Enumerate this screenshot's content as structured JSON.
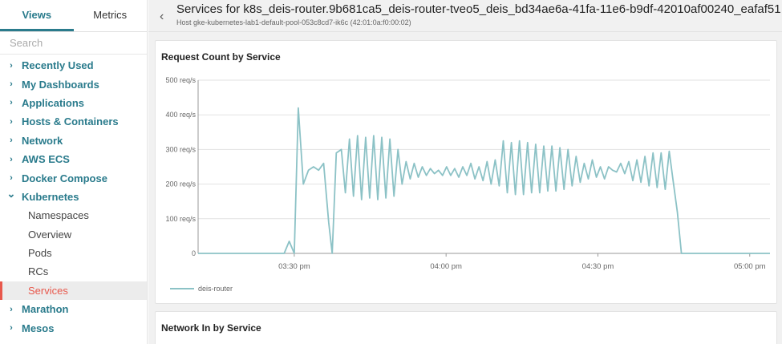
{
  "sidebar": {
    "tabs": [
      {
        "label": "Views",
        "active": true
      },
      {
        "label": "Metrics",
        "active": false
      }
    ],
    "search": {
      "placeholder": "Search",
      "value": ""
    },
    "items": [
      {
        "label": "Recently Used",
        "type": "group"
      },
      {
        "label": "My Dashboards",
        "type": "group"
      },
      {
        "label": "Applications",
        "type": "group"
      },
      {
        "label": "Hosts & Containers",
        "type": "group"
      },
      {
        "label": "Network",
        "type": "group"
      },
      {
        "label": "AWS ECS",
        "type": "group"
      },
      {
        "label": "Docker Compose",
        "type": "group"
      },
      {
        "label": "Kubernetes",
        "type": "group",
        "expanded": true
      },
      {
        "label": "Namespaces",
        "type": "sub"
      },
      {
        "label": "Overview",
        "type": "sub"
      },
      {
        "label": "Pods",
        "type": "sub"
      },
      {
        "label": "RCs",
        "type": "sub"
      },
      {
        "label": "Services",
        "type": "sub",
        "active": true
      },
      {
        "label": "Marathon",
        "type": "group"
      },
      {
        "label": "Mesos",
        "type": "group"
      }
    ]
  },
  "header": {
    "title": "Services for k8s_deis-router.9b681ca5_deis-router-tveo5_deis_bd34ae6a-41fa-11e6-b9df-42010af00240_eafaf51",
    "subtitle": "Host gke-kubernetes-lab1-default-pool-053c8cd7-ik6c (42:01:0a:f0:00:02)"
  },
  "panels": [
    {
      "title": "Request Count by Service"
    },
    {
      "title": "Network In by Service"
    }
  ],
  "colors": {
    "accent": "#2a7b8c",
    "active": "#e8584c",
    "series": "#8cc2c6"
  },
  "chart_data": {
    "type": "line",
    "title": "Request Count by Service",
    "y_ticks": [
      "500 req/s",
      "400 req/s",
      "300 req/s",
      "200 req/s",
      "100 req/s",
      "0"
    ],
    "x_ticks": [
      {
        "label": "03:30 pm",
        "t": 30
      },
      {
        "label": "04:00 pm",
        "t": 60
      },
      {
        "label": "04:30 pm",
        "t": 90
      },
      {
        "label": "05:00 pm",
        "t": 120
      }
    ],
    "xlim": [
      11,
      124
    ],
    "ylim": [
      0,
      500
    ],
    "grid": true,
    "legend": "bottom-left",
    "series": [
      {
        "name": "deis-router",
        "points": [
          [
            11,
            0
          ],
          [
            28,
            0
          ],
          [
            29,
            35
          ],
          [
            30,
            0
          ],
          [
            30.8,
            420
          ],
          [
            31.8,
            200
          ],
          [
            32.8,
            240
          ],
          [
            33.8,
            250
          ],
          [
            34.8,
            240
          ],
          [
            35.8,
            260
          ],
          [
            36.8,
            90
          ],
          [
            37.5,
            0
          ],
          [
            38.3,
            290
          ],
          [
            39.3,
            300
          ],
          [
            40.1,
            175
          ],
          [
            40.9,
            330
          ],
          [
            41.7,
            165
          ],
          [
            42.5,
            340
          ],
          [
            43.3,
            155
          ],
          [
            44.1,
            335
          ],
          [
            44.9,
            160
          ],
          [
            45.7,
            340
          ],
          [
            46.5,
            155
          ],
          [
            47.3,
            335
          ],
          [
            48.1,
            160
          ],
          [
            48.9,
            330
          ],
          [
            49.7,
            165
          ],
          [
            50.5,
            300
          ],
          [
            51.3,
            200
          ],
          [
            52.1,
            265
          ],
          [
            52.9,
            215
          ],
          [
            53.7,
            260
          ],
          [
            54.5,
            220
          ],
          [
            55.3,
            250
          ],
          [
            56.1,
            225
          ],
          [
            56.9,
            245
          ],
          [
            57.7,
            230
          ],
          [
            58.5,
            240
          ],
          [
            59.3,
            225
          ],
          [
            60.1,
            250
          ],
          [
            60.9,
            225
          ],
          [
            61.7,
            245
          ],
          [
            62.5,
            220
          ],
          [
            63.3,
            250
          ],
          [
            64.1,
            225
          ],
          [
            64.9,
            260
          ],
          [
            65.7,
            215
          ],
          [
            66.5,
            250
          ],
          [
            67.3,
            210
          ],
          [
            68.1,
            265
          ],
          [
            68.9,
            200
          ],
          [
            69.7,
            270
          ],
          [
            70.5,
            195
          ],
          [
            71.3,
            325
          ],
          [
            72.1,
            175
          ],
          [
            72.9,
            320
          ],
          [
            73.7,
            170
          ],
          [
            74.5,
            325
          ],
          [
            75.3,
            170
          ],
          [
            76.1,
            320
          ],
          [
            76.9,
            175
          ],
          [
            77.7,
            315
          ],
          [
            78.5,
            175
          ],
          [
            79.3,
            310
          ],
          [
            80.1,
            180
          ],
          [
            80.9,
            310
          ],
          [
            81.7,
            180
          ],
          [
            82.5,
            305
          ],
          [
            83.3,
            185
          ],
          [
            84.1,
            300
          ],
          [
            84.9,
            195
          ],
          [
            85.7,
            280
          ],
          [
            86.5,
            205
          ],
          [
            87.3,
            260
          ],
          [
            88.1,
            215
          ],
          [
            88.9,
            270
          ],
          [
            89.7,
            220
          ],
          [
            90.5,
            250
          ],
          [
            91.3,
            215
          ],
          [
            92.1,
            250
          ],
          [
            92.9,
            240
          ],
          [
            93.7,
            235
          ],
          [
            94.5,
            260
          ],
          [
            95.3,
            230
          ],
          [
            96.1,
            265
          ],
          [
            96.9,
            210
          ],
          [
            97.7,
            270
          ],
          [
            98.5,
            205
          ],
          [
            99.3,
            280
          ],
          [
            100.1,
            195
          ],
          [
            100.9,
            290
          ],
          [
            101.7,
            190
          ],
          [
            102.5,
            290
          ],
          [
            103.3,
            185
          ],
          [
            104.1,
            295
          ],
          [
            104.9,
            205
          ],
          [
            105.7,
            120
          ],
          [
            106.5,
            0
          ],
          [
            124,
            0
          ]
        ]
      }
    ]
  }
}
